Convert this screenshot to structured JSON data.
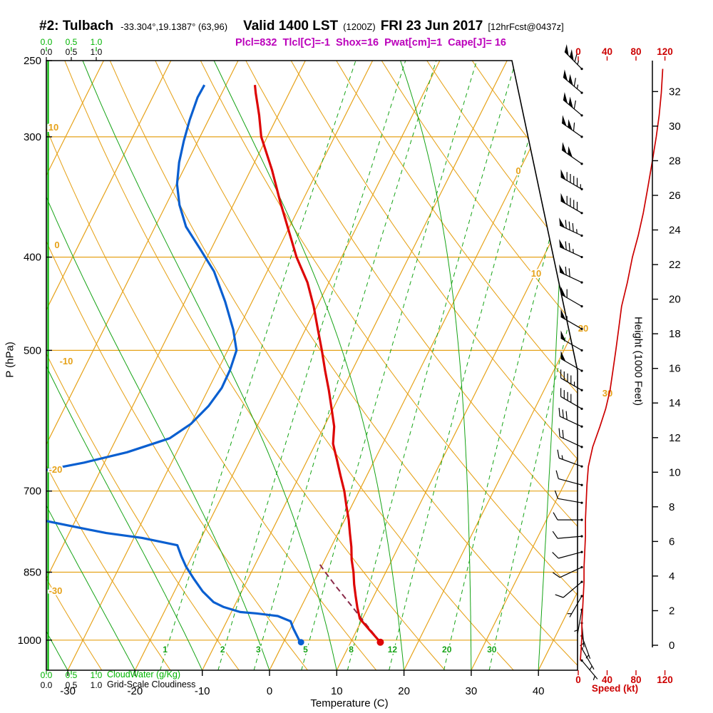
{
  "header": {
    "station": "#2: Tulbach",
    "coords": "-33.304°,19.1387° (63,96)",
    "valid": "Valid 1400 LST",
    "valid_z": "(1200Z)",
    "valid_date": "FRI 23 Jun 2017",
    "forecast_tag": "[12hrFcst@0437z]",
    "indices": "Plcl=832  Tlcl[C]=-1  Shox=16  Pwat[cm]=1  Cape[J]= 16"
  },
  "axes": {
    "pressure": {
      "label": "P (hPa)",
      "ticks": [
        250,
        300,
        400,
        500,
        700,
        850,
        1000
      ]
    },
    "temperature": {
      "label": "Temperature (C)",
      "ticks": [
        -30,
        -20,
        -10,
        0,
        10,
        20,
        30,
        40
      ]
    },
    "height": {
      "label": "Height (1000 Feet)",
      "ticks": [
        0,
        2,
        4,
        6,
        8,
        10,
        12,
        14,
        16,
        18,
        20,
        22,
        24,
        26,
        28,
        30,
        32
      ]
    },
    "speed": {
      "label": "Speed (kt)",
      "ticks": [
        0,
        40,
        80,
        120
      ]
    },
    "cloudwater": {
      "label": "CloudWater (g/Kg)",
      "ticks": [
        "0.0",
        "0.5",
        "1.0"
      ]
    },
    "cloudiness": {
      "label": "Grid-Scale Cloudiness",
      "ticks": [
        "0.0",
        "0.5",
        "1.0"
      ]
    }
  },
  "grid_labels": {
    "dry_adiabats_C": [
      10,
      0,
      -10,
      -20,
      -30
    ],
    "isotherms_C": [
      0,
      10,
      20,
      30
    ],
    "mixing_ratio_gkg": [
      1,
      2,
      3,
      5,
      8,
      12,
      20,
      30
    ]
  },
  "colors": {
    "grid_orange": "#e6a219",
    "grid_green": "#15a315",
    "axis_green": "#00b400",
    "temp_red": "#dd0505",
    "dewpoint_blue": "#0a5fd0",
    "speed_red": "#cc0000",
    "parcel_maroon": "#8a2a4a",
    "indices_magenta": "#bb00bb",
    "frame_black": "#000000"
  },
  "chart_data": {
    "type": "line",
    "subtype": "skew-t log-p atmospheric sounding",
    "title": "#2: Tulbach Valid 1400 LST (1200Z) FRI 23 Jun 2017",
    "pressure_scale": "log",
    "pressure_range_hPa": [
      250,
      1075
    ],
    "xlabel": "Temperature (C)",
    "ylabel": "P (hPa)",
    "grid": {
      "isobars_hPa": [
        300,
        400,
        500,
        700,
        850,
        1000
      ],
      "isotherms_C": {
        "min": -110,
        "max": 40,
        "step": 10
      },
      "dry_adiabats_C": {
        "min": -40,
        "max": 150,
        "step": 10
      },
      "moist_adiabats_start_C": [
        -30,
        -20,
        -10,
        0,
        10,
        20,
        30,
        40
      ],
      "mixing_ratio_gkg": [
        1,
        2,
        3,
        5,
        8,
        12,
        20,
        30
      ]
    },
    "temperature_profile": {
      "pressure_hPa": [
        1005,
        975,
        950,
        925,
        900,
        875,
        850,
        825,
        800,
        775,
        750,
        725,
        700,
        675,
        650,
        625,
        600,
        575,
        550,
        525,
        500,
        475,
        450,
        425,
        400,
        375,
        350,
        325,
        300,
        285,
        270,
        265
      ],
      "temp_C": [
        14.4,
        11.8,
        9.6,
        8.4,
        7.3,
        6.2,
        5.2,
        4.0,
        3.0,
        1.8,
        0.6,
        -0.8,
        -2.2,
        -3.9,
        -5.6,
        -7.4,
        -8.5,
        -10.2,
        -12.0,
        -14.0,
        -16.0,
        -18.2,
        -20.5,
        -23.2,
        -26.7,
        -29.9,
        -33.3,
        -36.8,
        -40.9,
        -42.8,
        -45.0,
        -45.7
      ]
    },
    "dewpoint_profile": {
      "pressure_hPa": [
        1007,
        972,
        956,
        944,
        938,
        935,
        924,
        913,
        890,
        863,
        839,
        818,
        797,
        783,
        774,
        761,
        752,
        745,
        720,
        690,
        670,
        654,
        638,
        617,
        596,
        571,
        547,
        524,
        500,
        476,
        445,
        414,
        392,
        372,
        353,
        336,
        319,
        303,
        288,
        273,
        265
      ],
      "dewpoint_C": [
        2.6,
        0.4,
        -0.5,
        -2.8,
        -6.2,
        -8.7,
        -11.5,
        -13.4,
        -15.8,
        -18.1,
        -20.1,
        -21.6,
        -23.0,
        -28.8,
        -34.5,
        -40.3,
        -44.3,
        -50.0,
        -58.0,
        -58.0,
        -50.0,
        -43.0,
        -37.4,
        -32.1,
        -30.0,
        -28.7,
        -28.1,
        -28.2,
        -28.7,
        -30.7,
        -34.0,
        -37.9,
        -41.7,
        -45.4,
        -48.0,
        -49.9,
        -51.2,
        -52.1,
        -52.8,
        -53.3,
        -53.2
      ]
    },
    "parcel_trace": {
      "pressure_hPa": [
        1005,
        960,
        920,
        880,
        850,
        832
      ],
      "temp_C": [
        14.4,
        10.7,
        7.3,
        3.7,
        1.0,
        -0.6
      ]
    },
    "wind_profile": {
      "pressure_hPa": [
        1050,
        1020,
        990,
        960,
        930,
        900,
        870,
        840,
        810,
        780,
        750,
        720,
        690,
        660,
        630,
        600,
        575,
        550,
        525,
        500,
        475,
        450,
        425,
        400,
        380,
        360,
        340,
        320,
        300,
        285,
        270,
        255
      ],
      "speed_kt": [
        3,
        4,
        5,
        5,
        6,
        7,
        8,
        8,
        9,
        10,
        10,
        11,
        12,
        14,
        20,
        30,
        38,
        44,
        48,
        52,
        56,
        60,
        68,
        75,
        83,
        90,
        96,
        102,
        108,
        112,
        115,
        117
      ],
      "direction_deg": [
        140,
        150,
        160,
        175,
        190,
        210,
        230,
        245,
        255,
        265,
        270,
        280,
        285,
        290,
        295,
        295,
        300,
        300,
        300,
        300,
        300,
        300,
        295,
        295,
        295,
        300,
        300,
        305,
        305,
        310,
        310,
        315
      ]
    },
    "surface_points": {
      "pressure_hPa": 1005,
      "temperature_C": 14.4,
      "dewpoint_C": 2.6
    },
    "cloud_water_profile": "zero at all levels (green line on left edge)",
    "indices": {
      "Plcl": 832,
      "Tlcl_C": -1,
      "Shox": 16,
      "Pwat_cm": 1,
      "Cape_J": 16
    }
  }
}
